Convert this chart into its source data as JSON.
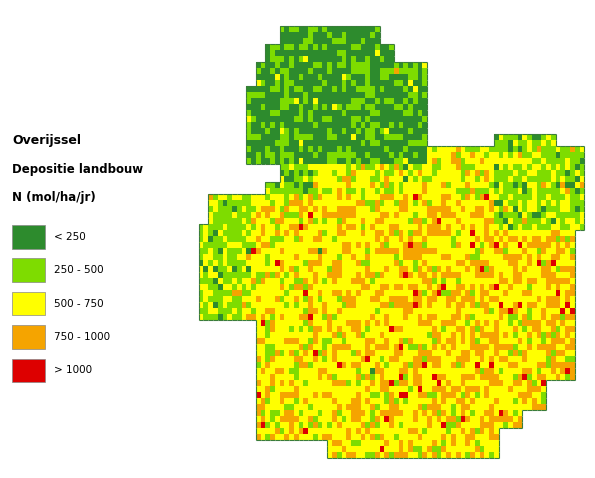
{
  "title_line1": "Overijssel",
  "title_line2": "Depositie landbouw",
  "title_line3": "N (mol/ha/jr)",
  "legend_labels": [
    "< 250",
    "250 - 500",
    "500 - 750",
    "750 - 1000",
    "> 1000"
  ],
  "legend_colors": [
    "#2d8b2d",
    "#7edc00",
    "#ffff00",
    "#f5a400",
    "#dd0000"
  ],
  "background_color": "#ffffff",
  "map_bg": "#ffffff",
  "border_color": "#4db34d",
  "grid_size": 80,
  "figsize": [
    5.95,
    4.78
  ],
  "dpi": 100
}
